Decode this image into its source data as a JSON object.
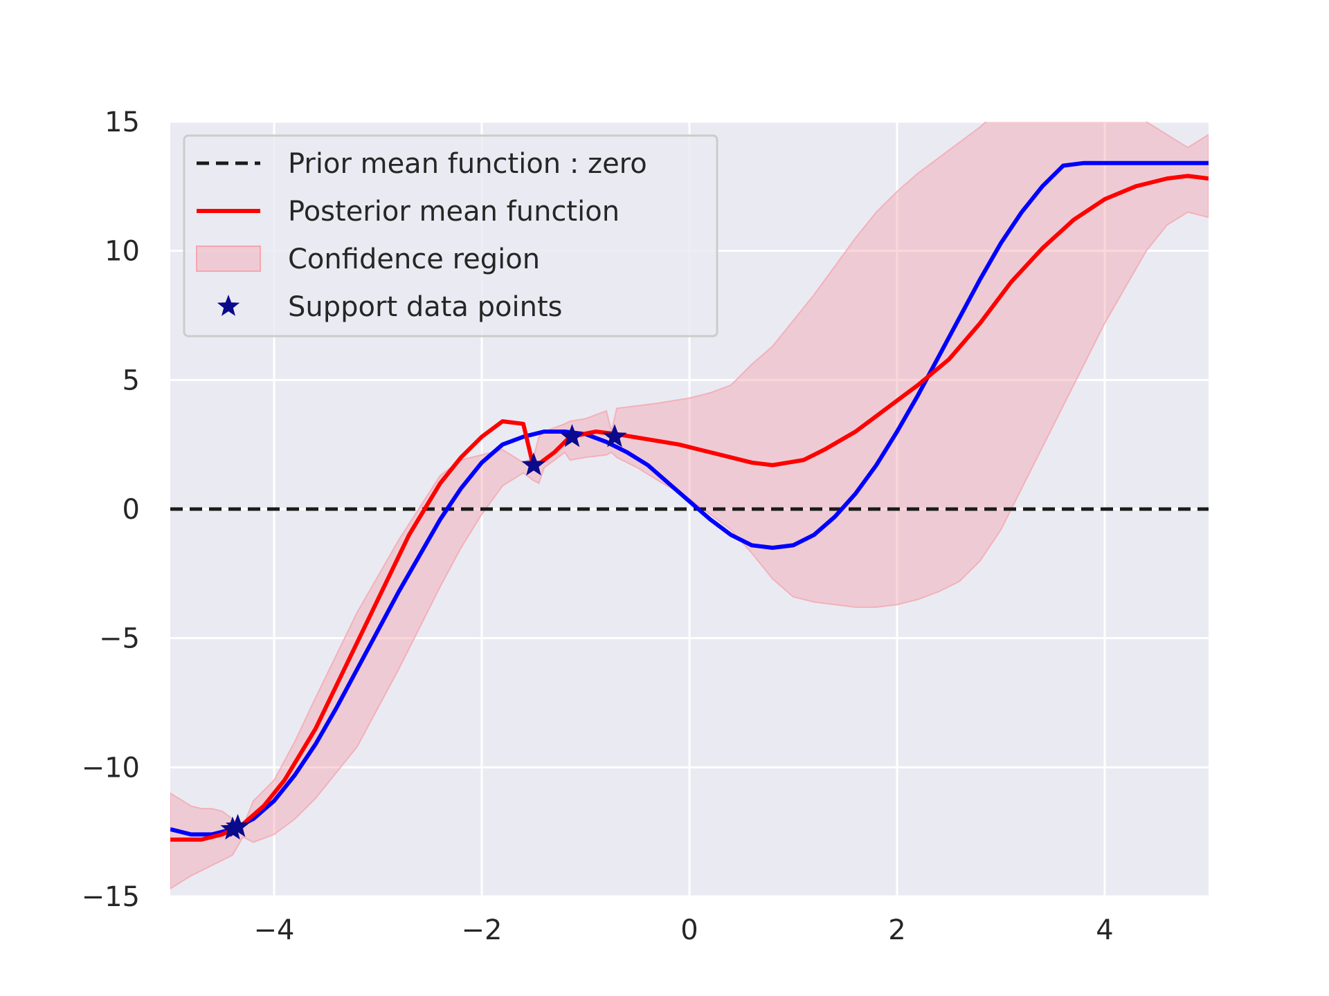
{
  "chart_data": {
    "type": "line",
    "title": "",
    "xlabel": "",
    "ylabel": "",
    "xlim": [
      -5,
      5
    ],
    "ylim": [
      -15,
      15
    ],
    "grid": true,
    "legend_placement": "top-left",
    "xticks": [
      -4,
      -2,
      0,
      2,
      4
    ],
    "xtick_labels": [
      "−4",
      "−2",
      "0",
      "2",
      "4"
    ],
    "yticks": [
      -15,
      -10,
      -5,
      0,
      5,
      10,
      15
    ],
    "ytick_labels": [
      "−15",
      "−10",
      "−5",
      "0",
      "5",
      "10",
      "15"
    ],
    "colors": {
      "background": "#eaeaf2",
      "grid": "#ffffff",
      "prior": "#1a1a1a",
      "posterior": "#ff0000",
      "true_function": "#0000ff",
      "confidence_fill": "#f4a6b0",
      "support": "#0a0a8c"
    },
    "legend": [
      {
        "label": "Prior mean function : zero",
        "kind": "dashed-line",
        "series": "prior"
      },
      {
        "label": "Posterior mean function",
        "kind": "line",
        "series": "posterior"
      },
      {
        "label": "Confidence region",
        "kind": "patch",
        "series": "confidence"
      },
      {
        "label": "Support data points",
        "kind": "star-marker",
        "series": "support"
      }
    ],
    "series": [
      {
        "key": "prior",
        "x": [
          -5,
          5
        ],
        "y": [
          0,
          0
        ]
      },
      {
        "key": "true_function",
        "x": [
          -5.0,
          -4.8,
          -4.6,
          -4.4,
          -4.2,
          -4.0,
          -3.8,
          -3.6,
          -3.4,
          -3.2,
          -3.0,
          -2.8,
          -2.6,
          -2.4,
          -2.2,
          -2.0,
          -1.8,
          -1.6,
          -1.4,
          -1.2,
          -1.0,
          -0.8,
          -0.6,
          -0.4,
          -0.2,
          0.0,
          0.2,
          0.4,
          0.6,
          0.8,
          1.0,
          1.2,
          1.4,
          1.6,
          1.8,
          2.0,
          2.2,
          2.4,
          2.6,
          2.8,
          3.0,
          3.2,
          3.4,
          3.6,
          3.8,
          4.0,
          4.2,
          4.4,
          4.6,
          4.8,
          5.0
        ],
        "y": [
          -12.4,
          -12.6,
          -12.6,
          -12.4,
          -12.0,
          -11.3,
          -10.3,
          -9.1,
          -7.7,
          -6.2,
          -4.7,
          -3.2,
          -1.8,
          -0.4,
          0.8,
          1.8,
          2.5,
          2.8,
          3.0,
          3.0,
          2.9,
          2.6,
          2.2,
          1.7,
          1.0,
          0.3,
          -0.4,
          -1.0,
          -1.4,
          -1.5,
          -1.4,
          -1.0,
          -0.3,
          0.6,
          1.7,
          3.0,
          4.4,
          5.9,
          7.4,
          8.9,
          10.3,
          11.5,
          12.5,
          13.3,
          13.4,
          13.4,
          13.4,
          13.4,
          13.4,
          13.4,
          13.4
        ]
      },
      {
        "key": "posterior",
        "x": [
          -5.0,
          -4.7,
          -4.5,
          -4.4,
          -4.3,
          -4.1,
          -3.9,
          -3.6,
          -3.3,
          -3.0,
          -2.7,
          -2.4,
          -2.2,
          -2.0,
          -1.8,
          -1.6,
          -1.5,
          -1.3,
          -1.15,
          -0.9,
          -0.7,
          -0.4,
          -0.1,
          0.2,
          0.4,
          0.6,
          0.8,
          1.1,
          1.3,
          1.6,
          1.9,
          2.2,
          2.5,
          2.8,
          3.1,
          3.4,
          3.7,
          4.0,
          4.3,
          4.6,
          4.8,
          5.0
        ],
        "y": [
          -12.8,
          -12.8,
          -12.6,
          -12.4,
          -12.2,
          -11.5,
          -10.5,
          -8.5,
          -6.0,
          -3.5,
          -1.0,
          1.0,
          2.0,
          2.8,
          3.4,
          3.3,
          1.6,
          2.2,
          2.8,
          3.0,
          2.9,
          2.7,
          2.5,
          2.2,
          2.0,
          1.8,
          1.7,
          1.9,
          2.3,
          3.0,
          3.9,
          4.8,
          5.8,
          7.2,
          8.8,
          10.1,
          11.2,
          12.0,
          12.5,
          12.8,
          12.9,
          12.8
        ]
      },
      {
        "key": "confidence_upper",
        "x": [
          -5.0,
          -4.8,
          -4.7,
          -4.6,
          -4.5,
          -4.4,
          -4.3,
          -4.2,
          -4.0,
          -3.8,
          -3.6,
          -3.2,
          -2.8,
          -2.4,
          -2.2,
          -2.0,
          -1.8,
          -1.6,
          -1.5,
          -1.45,
          -1.4,
          -1.2,
          -1.15,
          -1.0,
          -0.8,
          -0.75,
          -0.7,
          -0.5,
          -0.3,
          0.0,
          0.2,
          0.4,
          0.6,
          0.8,
          1.0,
          1.2,
          1.4,
          1.6,
          1.8,
          2.0,
          2.2,
          2.4,
          2.6,
          2.8,
          3.0,
          3.2,
          3.4,
          3.6,
          3.8,
          4.0,
          4.2,
          4.4,
          4.6,
          4.8,
          5.0
        ],
        "y": [
          -11.0,
          -11.5,
          -11.6,
          -11.6,
          -11.7,
          -12.0,
          -12.3,
          -11.3,
          -10.5,
          -9.0,
          -7.3,
          -4.0,
          -1.2,
          1.3,
          1.9,
          2.1,
          2.3,
          1.8,
          2.0,
          2.8,
          3.0,
          3.3,
          3.4,
          3.5,
          3.8,
          3.0,
          3.9,
          4.0,
          4.1,
          4.3,
          4.5,
          4.8,
          5.6,
          6.3,
          7.3,
          8.3,
          9.4,
          10.5,
          11.5,
          12.3,
          13.0,
          13.6,
          14.2,
          14.8,
          15.5,
          16.0,
          16.5,
          16.8,
          16.5,
          16.0,
          15.5,
          15.0,
          14.5,
          14.0,
          14.5
        ]
      },
      {
        "key": "confidence_lower",
        "x": [
          -5.0,
          -4.8,
          -4.6,
          -4.4,
          -4.3,
          -4.2,
          -4.0,
          -3.8,
          -3.6,
          -3.2,
          -2.8,
          -2.4,
          -2.2,
          -2.0,
          -1.8,
          -1.6,
          -1.5,
          -1.45,
          -1.4,
          -1.2,
          -1.15,
          -1.0,
          -0.8,
          -0.75,
          -0.7,
          -0.5,
          -0.3,
          0.0,
          0.2,
          0.4,
          0.6,
          0.8,
          1.0,
          1.2,
          1.4,
          1.6,
          1.8,
          2.0,
          2.2,
          2.4,
          2.6,
          2.8,
          3.0,
          3.2,
          3.4,
          3.6,
          3.8,
          4.0,
          4.2,
          4.4,
          4.6,
          4.8,
          5.0
        ],
        "y": [
          -14.7,
          -14.2,
          -13.8,
          -13.4,
          -12.7,
          -12.9,
          -12.6,
          -12.0,
          -11.2,
          -9.2,
          -6.2,
          -3.0,
          -1.5,
          -0.2,
          0.9,
          1.4,
          1.1,
          1.0,
          1.6,
          2.2,
          1.9,
          2.0,
          2.1,
          2.2,
          2.0,
          1.6,
          1.1,
          0.4,
          -0.2,
          -0.8,
          -1.7,
          -2.7,
          -3.4,
          -3.6,
          -3.7,
          -3.8,
          -3.8,
          -3.7,
          -3.5,
          -3.2,
          -2.8,
          -2.0,
          -0.8,
          0.8,
          2.4,
          4.0,
          5.6,
          7.2,
          8.6,
          10.0,
          11.0,
          11.5,
          11.3
        ]
      },
      {
        "key": "support",
        "x": [
          -4.4,
          -4.35,
          -1.5,
          -1.13,
          -0.72
        ],
        "y": [
          -12.4,
          -12.3,
          1.7,
          2.8,
          2.8
        ]
      }
    ]
  }
}
